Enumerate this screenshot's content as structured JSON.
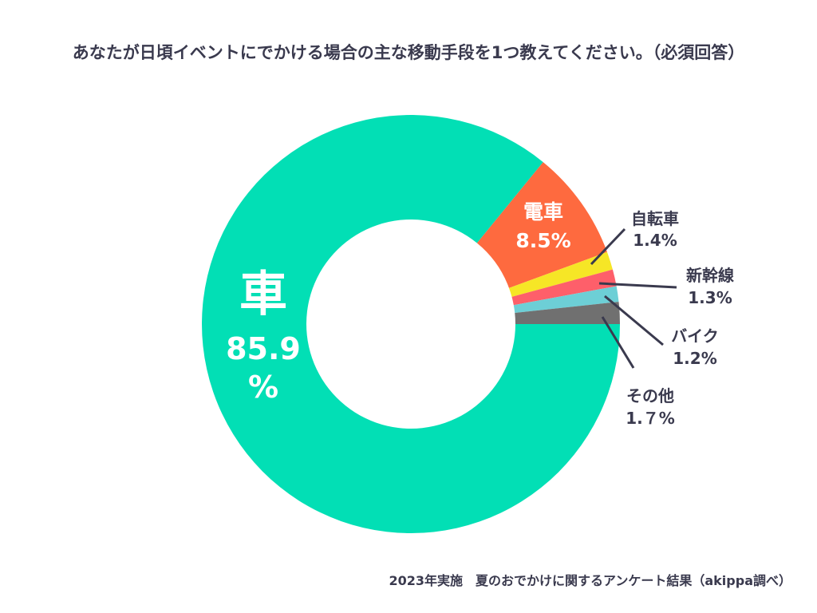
{
  "chart_data": {
    "type": "pie",
    "title": "あなたが日頃イベントにでかける場合の主な移動手段を1つ教えてください。（必須回答）",
    "slices": [
      {
        "label": "車",
        "value_text": "85.9",
        "unit_text": "%",
        "value": 85.9,
        "color": "#02dfb5"
      },
      {
        "label": "電車",
        "value_text": "8.5%",
        "value": 8.5,
        "color": "#fe6a3f"
      },
      {
        "label": "自転車",
        "value_text": "1.4%",
        "value": 1.4,
        "color": "#f6e626"
      },
      {
        "label": "新幹線",
        "value_text": "1.3%",
        "value": 1.3,
        "color": "#fe5f6a"
      },
      {
        "label": "バイク",
        "value_text": "1.2%",
        "value": 1.2,
        "color": "#6dcfd6"
      },
      {
        "label": "その他",
        "value_text": "1.７%",
        "value": 1.7,
        "color": "#707070"
      }
    ],
    "source": "2023年実施　夏のおでかけに関するアンケート結果（akippa調べ）"
  }
}
